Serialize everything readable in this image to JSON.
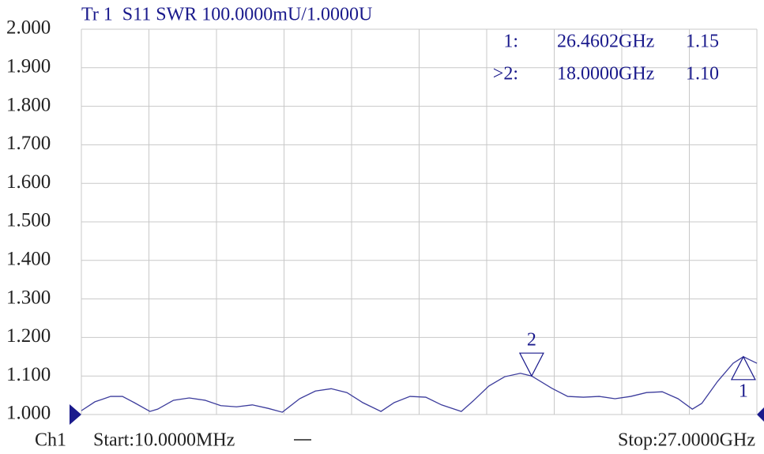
{
  "chart_data": {
    "type": "line",
    "title": "Tr 1  S11 SWR 100.0000mU/1.0000U",
    "channel": "Ch1",
    "start_label": "Start:10.0000MHz",
    "stop_label": "Stop:27.0000GHz",
    "xlim": [
      0.01,
      27
    ],
    "ylim": [
      1,
      2
    ],
    "yticks": [
      {
        "value": 2,
        "label": "2.000"
      },
      {
        "value": 1.9,
        "label": "1.900"
      },
      {
        "value": 1.8,
        "label": "1.800"
      },
      {
        "value": 1.7,
        "label": "1.700"
      },
      {
        "value": 1.6,
        "label": "1.600"
      },
      {
        "value": 1.5,
        "label": "1.500"
      },
      {
        "value": 1.4,
        "label": "1.400"
      },
      {
        "value": 1.3,
        "label": "1.300"
      },
      {
        "value": 1.2,
        "label": "1.200"
      },
      {
        "value": 1.1,
        "label": "1.100"
      },
      {
        "value": 1,
        "label": "1.000"
      }
    ],
    "grid": true,
    "series": [
      {
        "name": "S11",
        "color": "#3c3c9c",
        "x": [
          0.01,
          0.55,
          1.18,
          1.65,
          2.12,
          2.75,
          3.06,
          3.69,
          4.32,
          4.95,
          5.58,
          6.21,
          6.84,
          7.47,
          8.04,
          8.73,
          9.36,
          9.99,
          10.62,
          11.25,
          11.98,
          12.51,
          13.14,
          13.77,
          14.4,
          15.19,
          15.66,
          16.29,
          16.92,
          17.55,
          18.0,
          18.81,
          19.44,
          20.07,
          20.7,
          21.33,
          21.96,
          22.59,
          23.22,
          23.85,
          24.42,
          24.8,
          25.43,
          26.05,
          26.4602,
          26.68,
          27.0
        ],
        "values": [
          1.01,
          1.033,
          1.047,
          1.047,
          1.031,
          1.008,
          1.014,
          1.037,
          1.043,
          1.037,
          1.023,
          1.02,
          1.025,
          1.016,
          1.006,
          1.041,
          1.061,
          1.067,
          1.057,
          1.031,
          1.008,
          1.031,
          1.047,
          1.045,
          1.025,
          1.008,
          1.035,
          1.074,
          1.098,
          1.107,
          1.1,
          1.068,
          1.047,
          1.045,
          1.047,
          1.041,
          1.047,
          1.057,
          1.059,
          1.041,
          1.014,
          1.029,
          1.086,
          1.133,
          1.15,
          1.143,
          1.133
        ]
      }
    ],
    "markers": [
      {
        "label": "1",
        "readout": "1:",
        "x": 26.4602,
        "x_label": "26.4602GHz",
        "y": 1.15,
        "y_label": "1.15",
        "direction": "up"
      },
      {
        "label": "2",
        "readout": ">2:",
        "x": 18.0,
        "x_label": "18.0000GHz",
        "y": 1.1,
        "y_label": "1.10",
        "direction": "down"
      }
    ]
  }
}
